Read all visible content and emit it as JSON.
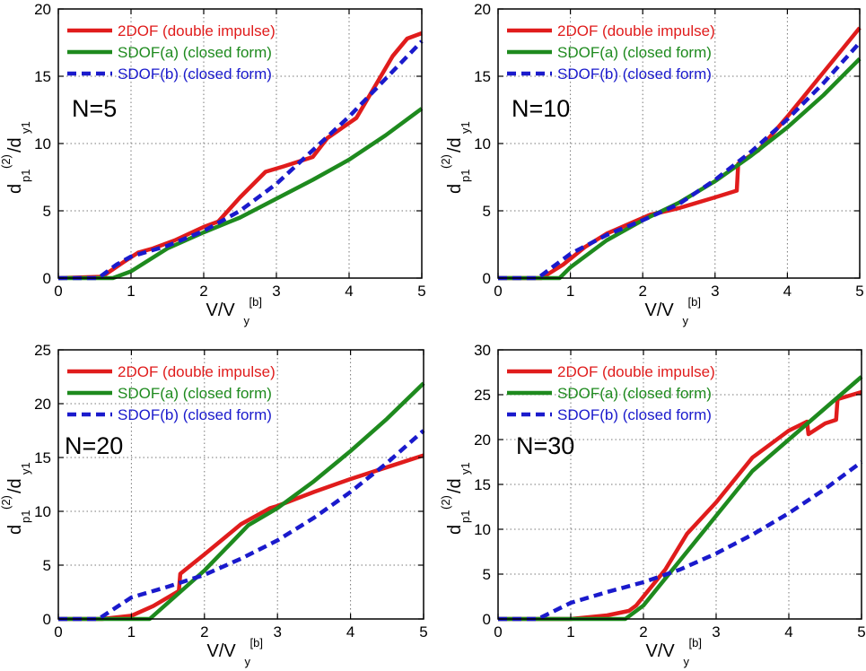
{
  "figure": {
    "legend_entries": [
      {
        "label": "2DOF (double impulse)",
        "color": "#e01c1c",
        "dash": "solid"
      },
      {
        "label": "SDOF(a) (closed form)",
        "color": "#1e8a1e",
        "dash": "solid"
      },
      {
        "label": "SDOF(b) (closed form)",
        "color": "#1a1acc",
        "dash": "dashed"
      }
    ],
    "xlabel_main": "V/V",
    "xlabel_sub": "y",
    "xlabel_sup": "[b]",
    "ylabel_d": "d",
    "ylabel_sub1": "p1",
    "ylabel_sup": "(2)",
    "ylabel_slash": "/d",
    "ylabel_sub2": "y1"
  },
  "chart_data": [
    {
      "type": "line",
      "panel_label": "N=5",
      "xlim": [
        0,
        5
      ],
      "ylim": [
        0,
        20
      ],
      "xticks": [
        0,
        1,
        2,
        3,
        4,
        5
      ],
      "yticks": [
        0,
        5,
        10,
        15,
        20
      ],
      "grid": true,
      "legend_position": "top-left",
      "series": [
        {
          "name": "2DOF (double impulse)",
          "x": [
            0,
            0.6,
            0.9,
            1.1,
            1.3,
            1.6,
            2.0,
            2.2,
            2.5,
            2.85,
            3.1,
            3.5,
            3.7,
            4.1,
            4.6,
            4.8,
            5.0
          ],
          "y": [
            0,
            0.1,
            1.2,
            1.9,
            2.2,
            2.8,
            3.8,
            4.2,
            6.0,
            7.9,
            8.3,
            9.0,
            10.4,
            11.9,
            16.5,
            17.8,
            18.2
          ]
        },
        {
          "name": "SDOF(a) (closed form)",
          "x": [
            0,
            0.75,
            1.0,
            1.5,
            2.0,
            2.5,
            3.0,
            3.5,
            4.0,
            4.5,
            5.0
          ],
          "y": [
            0,
            0.0,
            0.5,
            2.2,
            3.4,
            4.5,
            5.9,
            7.3,
            8.8,
            10.6,
            12.6
          ]
        },
        {
          "name": "SDOF(b) (closed form)",
          "x": [
            0,
            0.55,
            0.8,
            1.0,
            1.5,
            2.0,
            2.5,
            3.0,
            3.5,
            4.0,
            4.5,
            5.0
          ],
          "y": [
            0,
            0.0,
            1.0,
            1.6,
            2.4,
            3.5,
            5.0,
            7.0,
            9.5,
            12.0,
            14.8,
            17.6
          ]
        }
      ]
    },
    {
      "type": "line",
      "panel_label": "N=10",
      "xlim": [
        0,
        5
      ],
      "ylim": [
        0,
        20
      ],
      "xticks": [
        0,
        1,
        2,
        3,
        4,
        5
      ],
      "yticks": [
        0,
        5,
        10,
        15,
        20
      ],
      "grid": true,
      "legend_position": "top-left",
      "series": [
        {
          "name": "2DOF (double impulse)",
          "x": [
            0,
            0.6,
            0.9,
            1.2,
            1.5,
            1.8,
            2.1,
            2.5,
            3.0,
            3.3,
            3.32,
            3.6,
            4.0,
            4.5,
            5.0
          ],
          "y": [
            0,
            0.0,
            1.0,
            2.3,
            3.3,
            4.0,
            4.7,
            5.2,
            6.0,
            6.5,
            8.5,
            9.5,
            12.0,
            15.3,
            18.6
          ]
        },
        {
          "name": "SDOF(a) (closed form)",
          "x": [
            0,
            0.85,
            1.0,
            1.5,
            2.0,
            2.5,
            3.0,
            3.5,
            4.0,
            4.5,
            5.0
          ],
          "y": [
            0,
            0.0,
            0.8,
            2.8,
            4.3,
            5.6,
            7.2,
            9.1,
            11.2,
            13.6,
            16.3
          ]
        },
        {
          "name": "SDOF(b) (closed form)",
          "x": [
            0,
            0.55,
            1.0,
            1.5,
            2.0,
            2.5,
            3.0,
            3.5,
            4.0,
            4.5,
            5.0
          ],
          "y": [
            0,
            0.0,
            1.8,
            3.2,
            4.3,
            5.5,
            7.3,
            9.4,
            11.8,
            14.5,
            17.5
          ]
        }
      ]
    },
    {
      "type": "line",
      "panel_label": "N=20",
      "xlim": [
        0,
        5
      ],
      "ylim": [
        0,
        25
      ],
      "xticks": [
        0,
        1,
        2,
        3,
        4,
        5
      ],
      "yticks": [
        0,
        5,
        10,
        15,
        20,
        25
      ],
      "grid": true,
      "legend_position": "top-right",
      "series": [
        {
          "name": "2DOF (double impulse)",
          "x": [
            0,
            0.6,
            1.0,
            1.3,
            1.65,
            1.67,
            2.0,
            2.5,
            2.9,
            3.0,
            3.5,
            4.0,
            4.5,
            5.0
          ],
          "y": [
            0,
            0.0,
            0.3,
            1.2,
            2.6,
            4.2,
            6.0,
            8.8,
            10.3,
            10.5,
            11.8,
            13.0,
            14.1,
            15.2
          ]
        },
        {
          "name": "SDOF(a) (closed form)",
          "x": [
            0,
            1.25,
            1.5,
            2.0,
            2.5,
            2.6,
            3.0,
            3.5,
            4.0,
            4.5,
            5.0
          ],
          "y": [
            0,
            0.0,
            1.5,
            4.5,
            8.0,
            8.7,
            10.3,
            12.8,
            15.6,
            18.6,
            21.9
          ]
        },
        {
          "name": "SDOF(b) (closed form)",
          "x": [
            0,
            0.55,
            1.0,
            1.5,
            2.0,
            2.5,
            3.0,
            3.5,
            4.0,
            4.5,
            5.0
          ],
          "y": [
            0,
            0.0,
            2.0,
            3.0,
            4.1,
            5.6,
            7.3,
            9.4,
            11.8,
            14.5,
            17.5
          ]
        }
      ]
    },
    {
      "type": "line",
      "panel_label": "N=30",
      "xlim": [
        0,
        5
      ],
      "ylim": [
        0,
        30
      ],
      "xticks": [
        0,
        1,
        2,
        3,
        4,
        5
      ],
      "yticks": [
        0,
        5,
        10,
        15,
        20,
        25,
        30
      ],
      "grid": true,
      "legend_position": "top-right",
      "series": [
        {
          "name": "2DOF (double impulse)",
          "x": [
            0,
            1.0,
            1.5,
            1.8,
            1.9,
            2.0,
            2.3,
            2.6,
            3.0,
            3.5,
            4.0,
            4.25,
            4.27,
            4.5,
            4.65,
            4.67,
            5.0
          ],
          "y": [
            0,
            0.0,
            0.4,
            0.9,
            1.5,
            2.5,
            5.5,
            9.5,
            13.0,
            18.0,
            21.0,
            22.0,
            20.6,
            21.8,
            22.2,
            24.5,
            25.3
          ]
        },
        {
          "name": "SDOF(a) (closed form)",
          "x": [
            0,
            1.75,
            2.0,
            2.5,
            3.0,
            3.5,
            4.0,
            4.5,
            5.0
          ],
          "y": [
            0,
            0.0,
            1.5,
            6.5,
            11.5,
            16.5,
            20.0,
            23.5,
            27.0
          ]
        },
        {
          "name": "SDOF(b) (closed form)",
          "x": [
            0,
            0.55,
            1.0,
            1.5,
            2.0,
            2.5,
            3.0,
            3.5,
            4.0,
            4.5,
            5.0
          ],
          "y": [
            0,
            0.0,
            1.8,
            3.0,
            4.1,
            5.5,
            7.3,
            9.4,
            11.8,
            14.5,
            17.5
          ]
        }
      ]
    }
  ]
}
